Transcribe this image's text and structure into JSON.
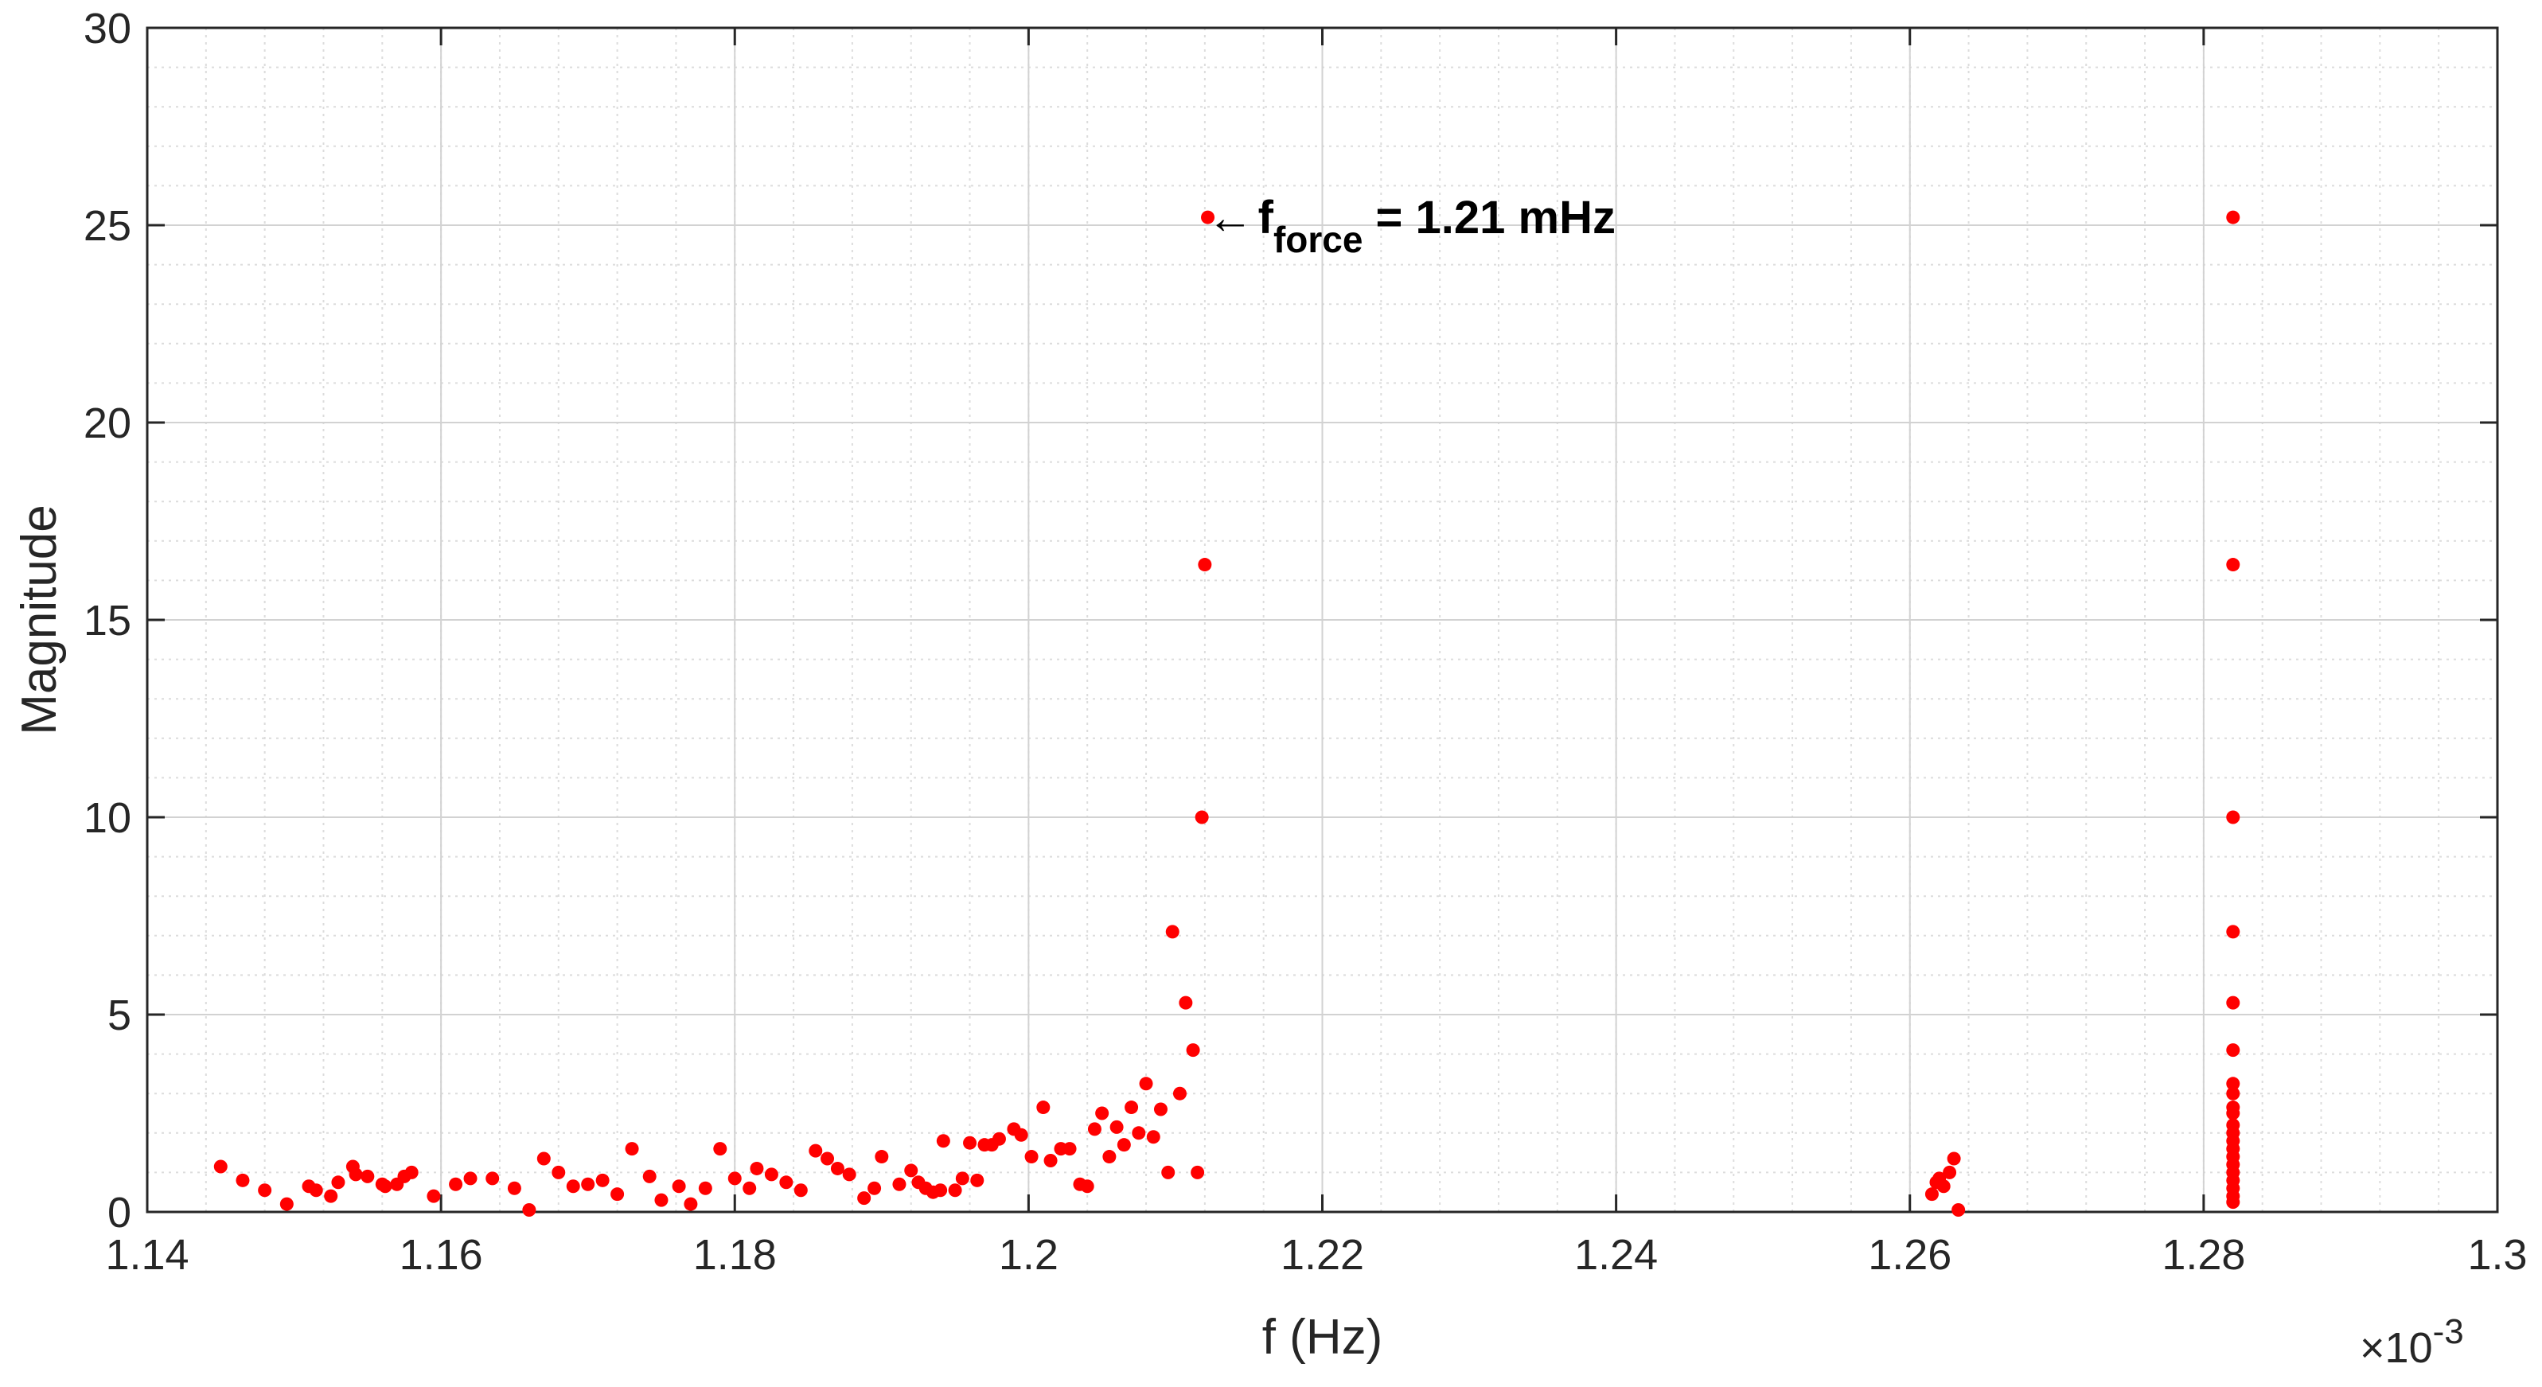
{
  "chart_data": {
    "type": "scatter",
    "xlabel": "f (Hz)",
    "ylabel": "Magnitude",
    "x_exponent_label": {
      "times": "×",
      "base": "10",
      "power": "-3"
    },
    "xlim": [
      1.14,
      1.3
    ],
    "ylim": [
      0,
      30
    ],
    "x_ticks": [
      1.14,
      1.16,
      1.18,
      1.2,
      1.22,
      1.24,
      1.26,
      1.28,
      1.3
    ],
    "x_tick_labels": [
      "1.14",
      "1.16",
      "1.18",
      "1.2",
      "1.22",
      "1.24",
      "1.26",
      "1.28",
      "1.3"
    ],
    "y_ticks": [
      0,
      5,
      10,
      15,
      20,
      25,
      30
    ],
    "y_tick_labels": [
      "0",
      "5",
      "10",
      "15",
      "20",
      "25",
      "30"
    ],
    "x_minor_step": 0.004,
    "y_minor_step": 1,
    "grid": true,
    "minor_grid": true,
    "marker_color": "#ff0000",
    "annotation": {
      "x": 1.2115,
      "y": 25.2,
      "arrow": "←",
      "label_main": "f",
      "label_sub": "force",
      "label_rest": " = 1.21 mHz"
    },
    "points": [
      [
        1.145,
        1.15
      ],
      [
        1.1465,
        0.8
      ],
      [
        1.148,
        0.55
      ],
      [
        1.1495,
        0.2
      ],
      [
        1.151,
        0.65
      ],
      [
        1.1515,
        0.55
      ],
      [
        1.1525,
        0.4
      ],
      [
        1.153,
        0.75
      ],
      [
        1.154,
        1.15
      ],
      [
        1.1542,
        0.95
      ],
      [
        1.155,
        0.9
      ],
      [
        1.156,
        0.7
      ],
      [
        1.1562,
        0.65
      ],
      [
        1.157,
        0.7
      ],
      [
        1.1575,
        0.9
      ],
      [
        1.158,
        1.0
      ],
      [
        1.1595,
        0.4
      ],
      [
        1.161,
        0.7
      ],
      [
        1.162,
        0.85
      ],
      [
        1.1635,
        0.85
      ],
      [
        1.165,
        0.6
      ],
      [
        1.166,
        0.05
      ],
      [
        1.167,
        1.35
      ],
      [
        1.168,
        1.0
      ],
      [
        1.169,
        0.65
      ],
      [
        1.17,
        0.7
      ],
      [
        1.171,
        0.8
      ],
      [
        1.172,
        0.45
      ],
      [
        1.173,
        1.6
      ],
      [
        1.1742,
        0.9
      ],
      [
        1.175,
        0.3
      ],
      [
        1.1762,
        0.65
      ],
      [
        1.177,
        0.2
      ],
      [
        1.178,
        0.6
      ],
      [
        1.179,
        1.6
      ],
      [
        1.18,
        0.85
      ],
      [
        1.181,
        0.6
      ],
      [
        1.1815,
        1.1
      ],
      [
        1.1825,
        0.95
      ],
      [
        1.1835,
        0.75
      ],
      [
        1.1845,
        0.55
      ],
      [
        1.1855,
        1.55
      ],
      [
        1.1863,
        1.35
      ],
      [
        1.187,
        1.1
      ],
      [
        1.1878,
        0.95
      ],
      [
        1.1888,
        0.35
      ],
      [
        1.1895,
        0.6
      ],
      [
        1.19,
        1.4
      ],
      [
        1.1912,
        0.7
      ],
      [
        1.192,
        1.05
      ],
      [
        1.1925,
        0.75
      ],
      [
        1.193,
        0.6
      ],
      [
        1.1935,
        0.5
      ],
      [
        1.194,
        0.55
      ],
      [
        1.1942,
        1.8
      ],
      [
        1.195,
        0.55
      ],
      [
        1.1955,
        0.85
      ],
      [
        1.196,
        1.75
      ],
      [
        1.1965,
        0.8
      ],
      [
        1.197,
        1.7
      ],
      [
        1.1975,
        1.7
      ],
      [
        1.198,
        1.85
      ],
      [
        1.199,
        2.1
      ],
      [
        1.1995,
        1.95
      ],
      [
        1.2002,
        1.4
      ],
      [
        1.201,
        2.65
      ],
      [
        1.2015,
        1.3
      ],
      [
        1.2022,
        1.6
      ],
      [
        1.2028,
        1.6
      ],
      [
        1.2035,
        0.7
      ],
      [
        1.204,
        0.65
      ],
      [
        1.2045,
        2.1
      ],
      [
        1.205,
        2.5
      ],
      [
        1.2055,
        1.4
      ],
      [
        1.206,
        2.15
      ],
      [
        1.2065,
        1.7
      ],
      [
        1.207,
        2.65
      ],
      [
        1.2075,
        2.0
      ],
      [
        1.208,
        3.25
      ],
      [
        1.2085,
        1.9
      ],
      [
        1.209,
        2.6
      ],
      [
        1.2095,
        1.0
      ],
      [
        1.2098,
        7.1
      ],
      [
        1.2103,
        3.0
      ],
      [
        1.2107,
        5.3
      ],
      [
        1.2112,
        4.1
      ],
      [
        1.2115,
        1.0
      ],
      [
        1.2118,
        10.0
      ],
      [
        1.212,
        16.4
      ],
      [
        1.2122,
        25.2
      ],
      [
        1.2615,
        0.45
      ],
      [
        1.2618,
        0.75
      ],
      [
        1.262,
        0.85
      ],
      [
        1.2623,
        0.65
      ],
      [
        1.2627,
        1.0
      ],
      [
        1.263,
        1.35
      ],
      [
        1.2633,
        0.05
      ],
      [
        1.282,
        25.2
      ],
      [
        1.282,
        16.4
      ],
      [
        1.282,
        10.0
      ],
      [
        1.282,
        7.1
      ],
      [
        1.282,
        5.3
      ],
      [
        1.282,
        4.1
      ],
      [
        1.282,
        3.25
      ],
      [
        1.282,
        3.0
      ],
      [
        1.282,
        2.65
      ],
      [
        1.282,
        2.5
      ],
      [
        1.282,
        2.2
      ],
      [
        1.282,
        2.0
      ],
      [
        1.282,
        1.8
      ],
      [
        1.282,
        1.6
      ],
      [
        1.282,
        1.4
      ],
      [
        1.282,
        1.2
      ],
      [
        1.282,
        1.0
      ],
      [
        1.282,
        0.8
      ],
      [
        1.282,
        0.6
      ],
      [
        1.282,
        0.4
      ],
      [
        1.282,
        0.25
      ]
    ]
  }
}
